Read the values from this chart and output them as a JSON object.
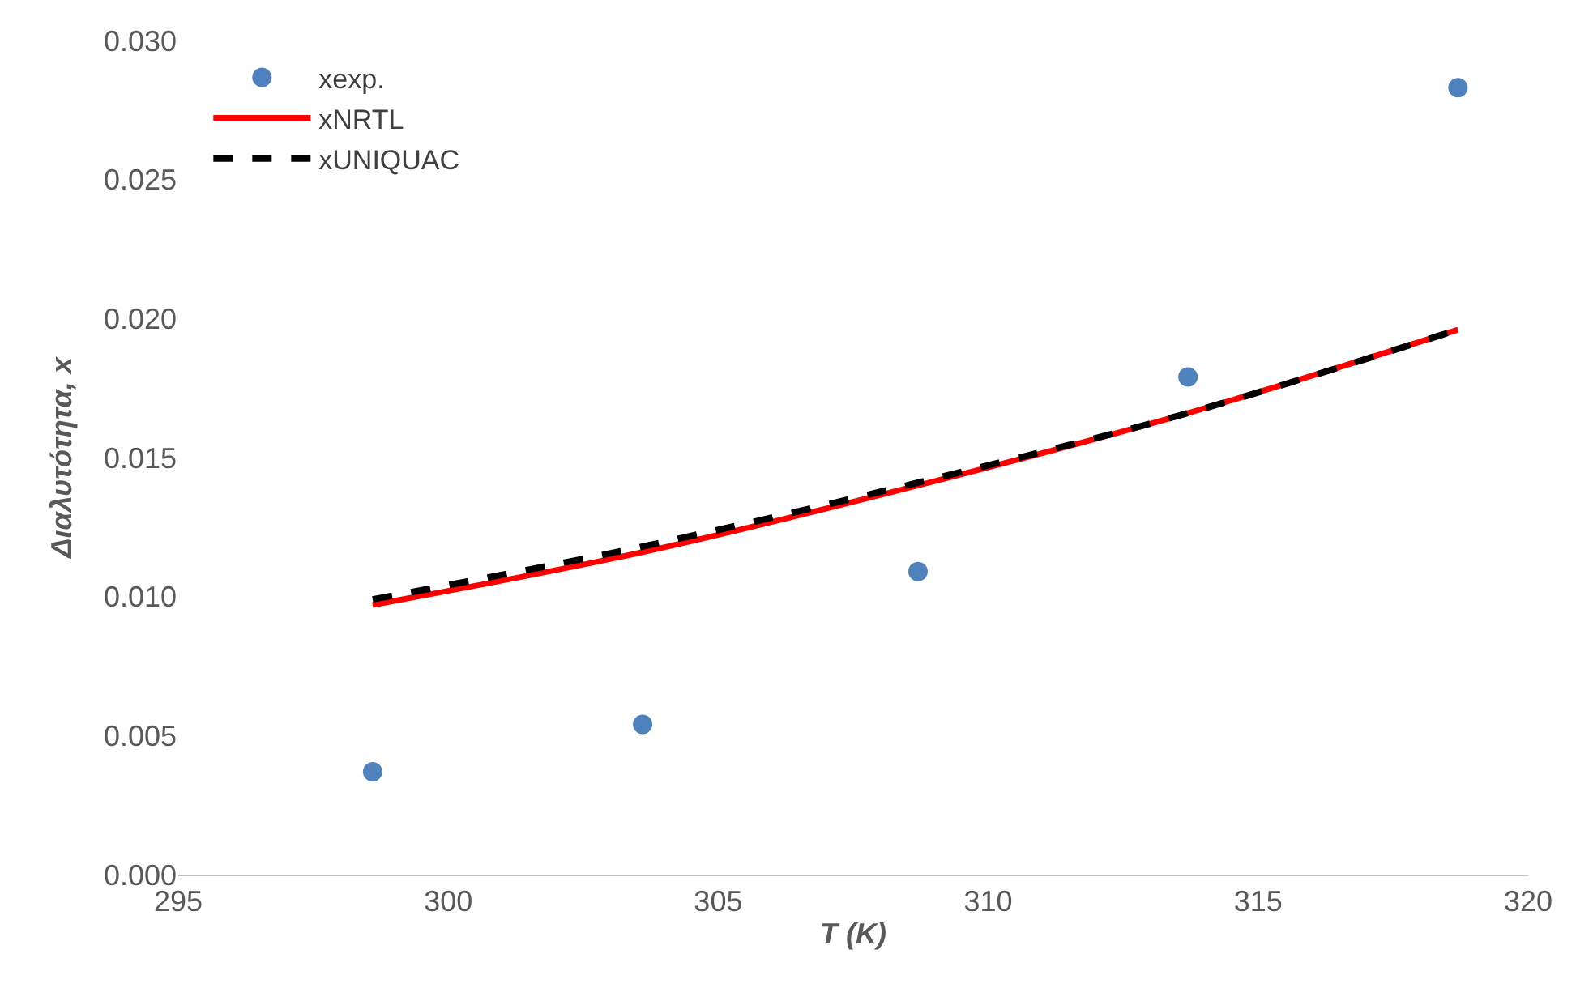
{
  "chart_data": {
    "type": "scatter",
    "xlabel": "T (K)",
    "ylabel": "Διαλυτότητα, x",
    "xlim": [
      295,
      320
    ],
    "xticks": [
      295,
      300,
      305,
      310,
      315,
      320
    ],
    "ylim": [
      0,
      0.03
    ],
    "yticks": [
      {
        "value": 0,
        "label": "0.000"
      },
      {
        "value": 0.005,
        "label": "0.005"
      },
      {
        "value": 0.01,
        "label": "0.010"
      },
      {
        "value": 0.015,
        "label": "0.015"
      },
      {
        "value": 0.02,
        "label": "0.020"
      },
      {
        "value": 0.025,
        "label": "0.025"
      },
      {
        "value": 0.03,
        "label": "0.030"
      }
    ],
    "x": [
      298.6,
      303.6,
      308.7,
      313.7,
      318.7
    ],
    "grid": false,
    "legend": "top left",
    "series": [
      {
        "name": "xexp.",
        "marker": "circle",
        "color": "#4f81bd",
        "values": [
          0.0037,
          0.0054,
          0.0109,
          0.0179,
          0.0283
        ]
      },
      {
        "name": "xNRTL",
        "type": "line",
        "marker": "none",
        "line_style": "solid",
        "color": "#ff0000",
        "values": [
          0.0097,
          0.0116,
          0.014,
          0.0166,
          0.0196
        ]
      },
      {
        "name": "xUNIQUAC",
        "type": "line",
        "marker": "none",
        "line_style": "dashed",
        "color": "#000000",
        "values": [
          0.0099,
          0.0118,
          0.0141,
          0.0166,
          0.0196
        ]
      }
    ]
  }
}
